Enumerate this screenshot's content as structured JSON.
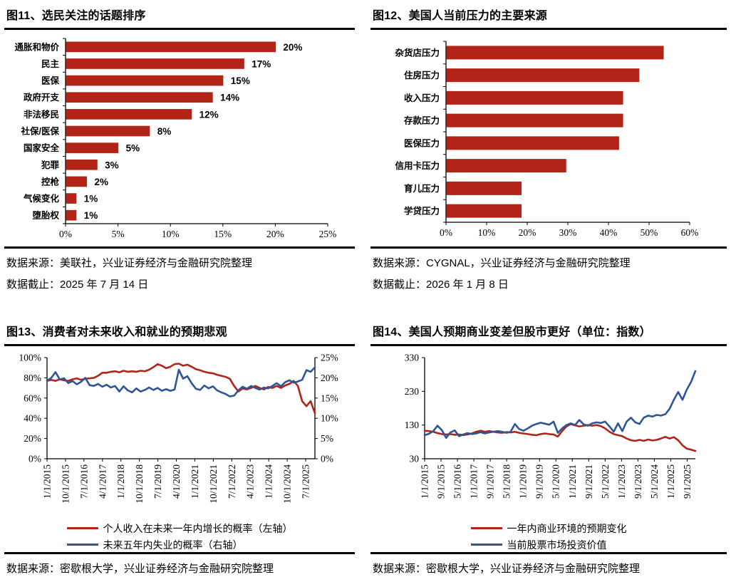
{
  "colors": {
    "red": "#B22318",
    "blue": "#2F5597",
    "axis": "#000000"
  },
  "chart_data": [
    {
      "id": "fig11",
      "type": "bar",
      "orientation": "horizontal",
      "title": "图11、选民关注的话题排序",
      "categories": [
        "通胀和物价",
        "民主",
        "医保",
        "政府开支",
        "非法移民",
        "社保/医保",
        "国家安全",
        "犯罪",
        "控枪",
        "气候变化",
        "堕胎权"
      ],
      "values": [
        20,
        17,
        15,
        14,
        12,
        8,
        5,
        3,
        2,
        1,
        1
      ],
      "value_labels": [
        "20%",
        "17%",
        "15%",
        "14%",
        "12%",
        "8%",
        "5%",
        "3%",
        "2%",
        "1%",
        "1%"
      ],
      "x_ticks": [
        "0%",
        "5%",
        "10%",
        "15%",
        "20%",
        "25%"
      ],
      "x_max": 25,
      "bar_color_key": "red",
      "grid": false,
      "source": "数据来源：美联社，兴业证券经济与金融研究院整理",
      "cutoff": "数据截止：2025 年 7 月 14 日"
    },
    {
      "id": "fig12",
      "type": "bar",
      "orientation": "horizontal",
      "title": "图12、美国人当前压力的主要来源",
      "categories": [
        "杂货店压力",
        "住房压力",
        "收入压力",
        "存款压力",
        "医保压力",
        "信用卡压力",
        "育儿压力",
        "学贷压力"
      ],
      "values": [
        53.5,
        47.5,
        43.5,
        43.5,
        42.5,
        29.5,
        18.5,
        18.5
      ],
      "value_labels": null,
      "x_ticks": [
        "0%",
        "10%",
        "20%",
        "30%",
        "40%",
        "50%",
        "60%"
      ],
      "x_max": 60,
      "bar_color_key": "red",
      "grid": false,
      "source": "数据来源：CYGNAL，兴业证券经济与金融研究院整理",
      "cutoff": "数据截止：2026 年 1 月 8 日"
    },
    {
      "id": "fig13",
      "type": "line",
      "dual_axis": true,
      "title": "图13、消费者对未来收入和就业的预期悲观",
      "x_tick_labels": [
        "1/1/2015",
        "10/1/2015",
        "7/1/2016",
        "4/1/2017",
        "1/1/2018",
        "10/1/2018",
        "7/1/2019",
        "4/1/2020",
        "1/1/2021",
        "10/1/2021",
        "7/1/2022",
        "4/1/2023",
        "1/1/2024",
        "10/1/2024",
        "7/1/2025"
      ],
      "left_axis": {
        "tick_labels": [
          "100%",
          "80%",
          "60%",
          "40%",
          "20%",
          "0%"
        ],
        "range": [
          0,
          100
        ]
      },
      "right_axis": {
        "tick_labels": [
          "25%",
          "20%",
          "15%",
          "10%",
          "5%",
          "0%"
        ],
        "range": [
          0,
          25
        ]
      },
      "legend": [
        {
          "label": "个人收入在未来一年内增长的概率（左轴）",
          "color_key": "red"
        },
        {
          "label": "未来五年内失业的概率（右轴）",
          "color_key": "blue"
        }
      ],
      "series": [
        {
          "name": "income-growth-probability",
          "axis": "left",
          "color_key": "red",
          "values": [
            77,
            78,
            77,
            78.5,
            77.5,
            77,
            78.5,
            79.5,
            78,
            79,
            79.5,
            80,
            82,
            85,
            85,
            86,
            86.5,
            85.5,
            87,
            86,
            86.5,
            86,
            87,
            86.5,
            88,
            90.5,
            93.5,
            92,
            89.5,
            91,
            93.5,
            94,
            92,
            93,
            91,
            88.5,
            87.5,
            86,
            85,
            84.5,
            83,
            82,
            81,
            79,
            72,
            66.5,
            69.5,
            68.5,
            70,
            72,
            70,
            68.5,
            71,
            70,
            72,
            70,
            72.5,
            74,
            77,
            72,
            57,
            52,
            57,
            45
          ]
        },
        {
          "name": "unemployment-probability",
          "axis": "right",
          "color_key": "blue",
          "values": [
            19.3,
            20,
            21.4,
            19.6,
            19.9,
            18.7,
            19.2,
            18.4,
            19,
            20,
            18.2,
            18,
            18.5,
            17.8,
            18.3,
            17.6,
            18,
            16.6,
            17.9,
            16.9,
            16.4,
            17.4,
            16.6,
            17,
            17.6,
            17,
            17.5,
            16.8,
            17.2,
            16.8,
            17.1,
            22,
            19.8,
            20.4,
            18.7,
            17.3,
            17,
            18.1,
            17.4,
            17.9,
            16.9,
            16.4,
            16,
            15.4,
            15.6,
            16.9,
            17.8,
            17.3,
            18,
            17.5,
            17.1,
            17.6,
            17.4,
            18,
            18.7,
            17.9,
            18.9,
            19.4,
            18.8,
            19.1,
            19.5,
            21.9,
            21.5,
            22.6
          ]
        }
      ],
      "grid": false,
      "source": "数据来源：密歇根大学，兴业证券经济与金融研究院整理"
    },
    {
      "id": "fig14",
      "type": "line",
      "dual_axis": false,
      "title": "图14、美国人预期商业变差但股市更好（单位：指数）",
      "x_tick_labels": [
        "1/1/2015",
        "9/1/2015",
        "5/1/2016",
        "1/1/2017",
        "9/1/2017",
        "5/1/2018",
        "1/1/2019",
        "9/1/2019",
        "5/1/2020",
        "1/1/2021",
        "9/1/2021",
        "5/1/2022",
        "1/1/2023",
        "9/1/2023",
        "5/1/2024",
        "1/1/2025",
        "9/1/2025"
      ],
      "left_axis": {
        "tick_labels": [
          "330",
          "230",
          "130",
          "30"
        ],
        "range": [
          30,
          330
        ]
      },
      "legend": [
        {
          "label": "一年内商业环境的预期变化",
          "color_key": "red"
        },
        {
          "label": "当前股票市场投资价值",
          "color_key": "blue"
        }
      ],
      "series": [
        {
          "name": "business-conditions-expectation",
          "axis": "left",
          "color_key": "red",
          "values": [
            113,
            112,
            110,
            106,
            103,
            102,
            103,
            101,
            102,
            100,
            102,
            105,
            110,
            113,
            110,
            112,
            110,
            108,
            107,
            109,
            108,
            110,
            107,
            105,
            103,
            101,
            100,
            103,
            105,
            103,
            102,
            96,
            112,
            126,
            133,
            129,
            126,
            128,
            130,
            128,
            130,
            127,
            120,
            110,
            103,
            100,
            97,
            90,
            85,
            83,
            86,
            83,
            87,
            84,
            86,
            90,
            95,
            90,
            94,
            85,
            70,
            60,
            57,
            53
          ]
        },
        {
          "name": "stock-market-investment-value",
          "axis": "left",
          "color_key": "blue",
          "values": [
            100,
            104,
            112,
            128,
            115,
            92,
            108,
            114,
            97,
            102,
            106,
            103,
            105,
            109,
            105,
            108,
            110,
            112,
            110,
            107,
            110,
            133,
            118,
            113,
            120,
            128,
            133,
            137,
            134,
            131,
            140,
            107,
            120,
            130,
            135,
            130,
            145,
            132,
            128,
            135,
            138,
            136,
            140,
            126,
            110,
            135,
            112,
            140,
            152,
            138,
            133,
            152,
            158,
            155,
            160,
            158,
            162,
            178,
            205,
            228,
            205,
            235,
            258,
            290
          ]
        }
      ],
      "grid": false,
      "source": "数据来源：密歇根大学，兴业证券经济与金融研究院整理"
    }
  ]
}
